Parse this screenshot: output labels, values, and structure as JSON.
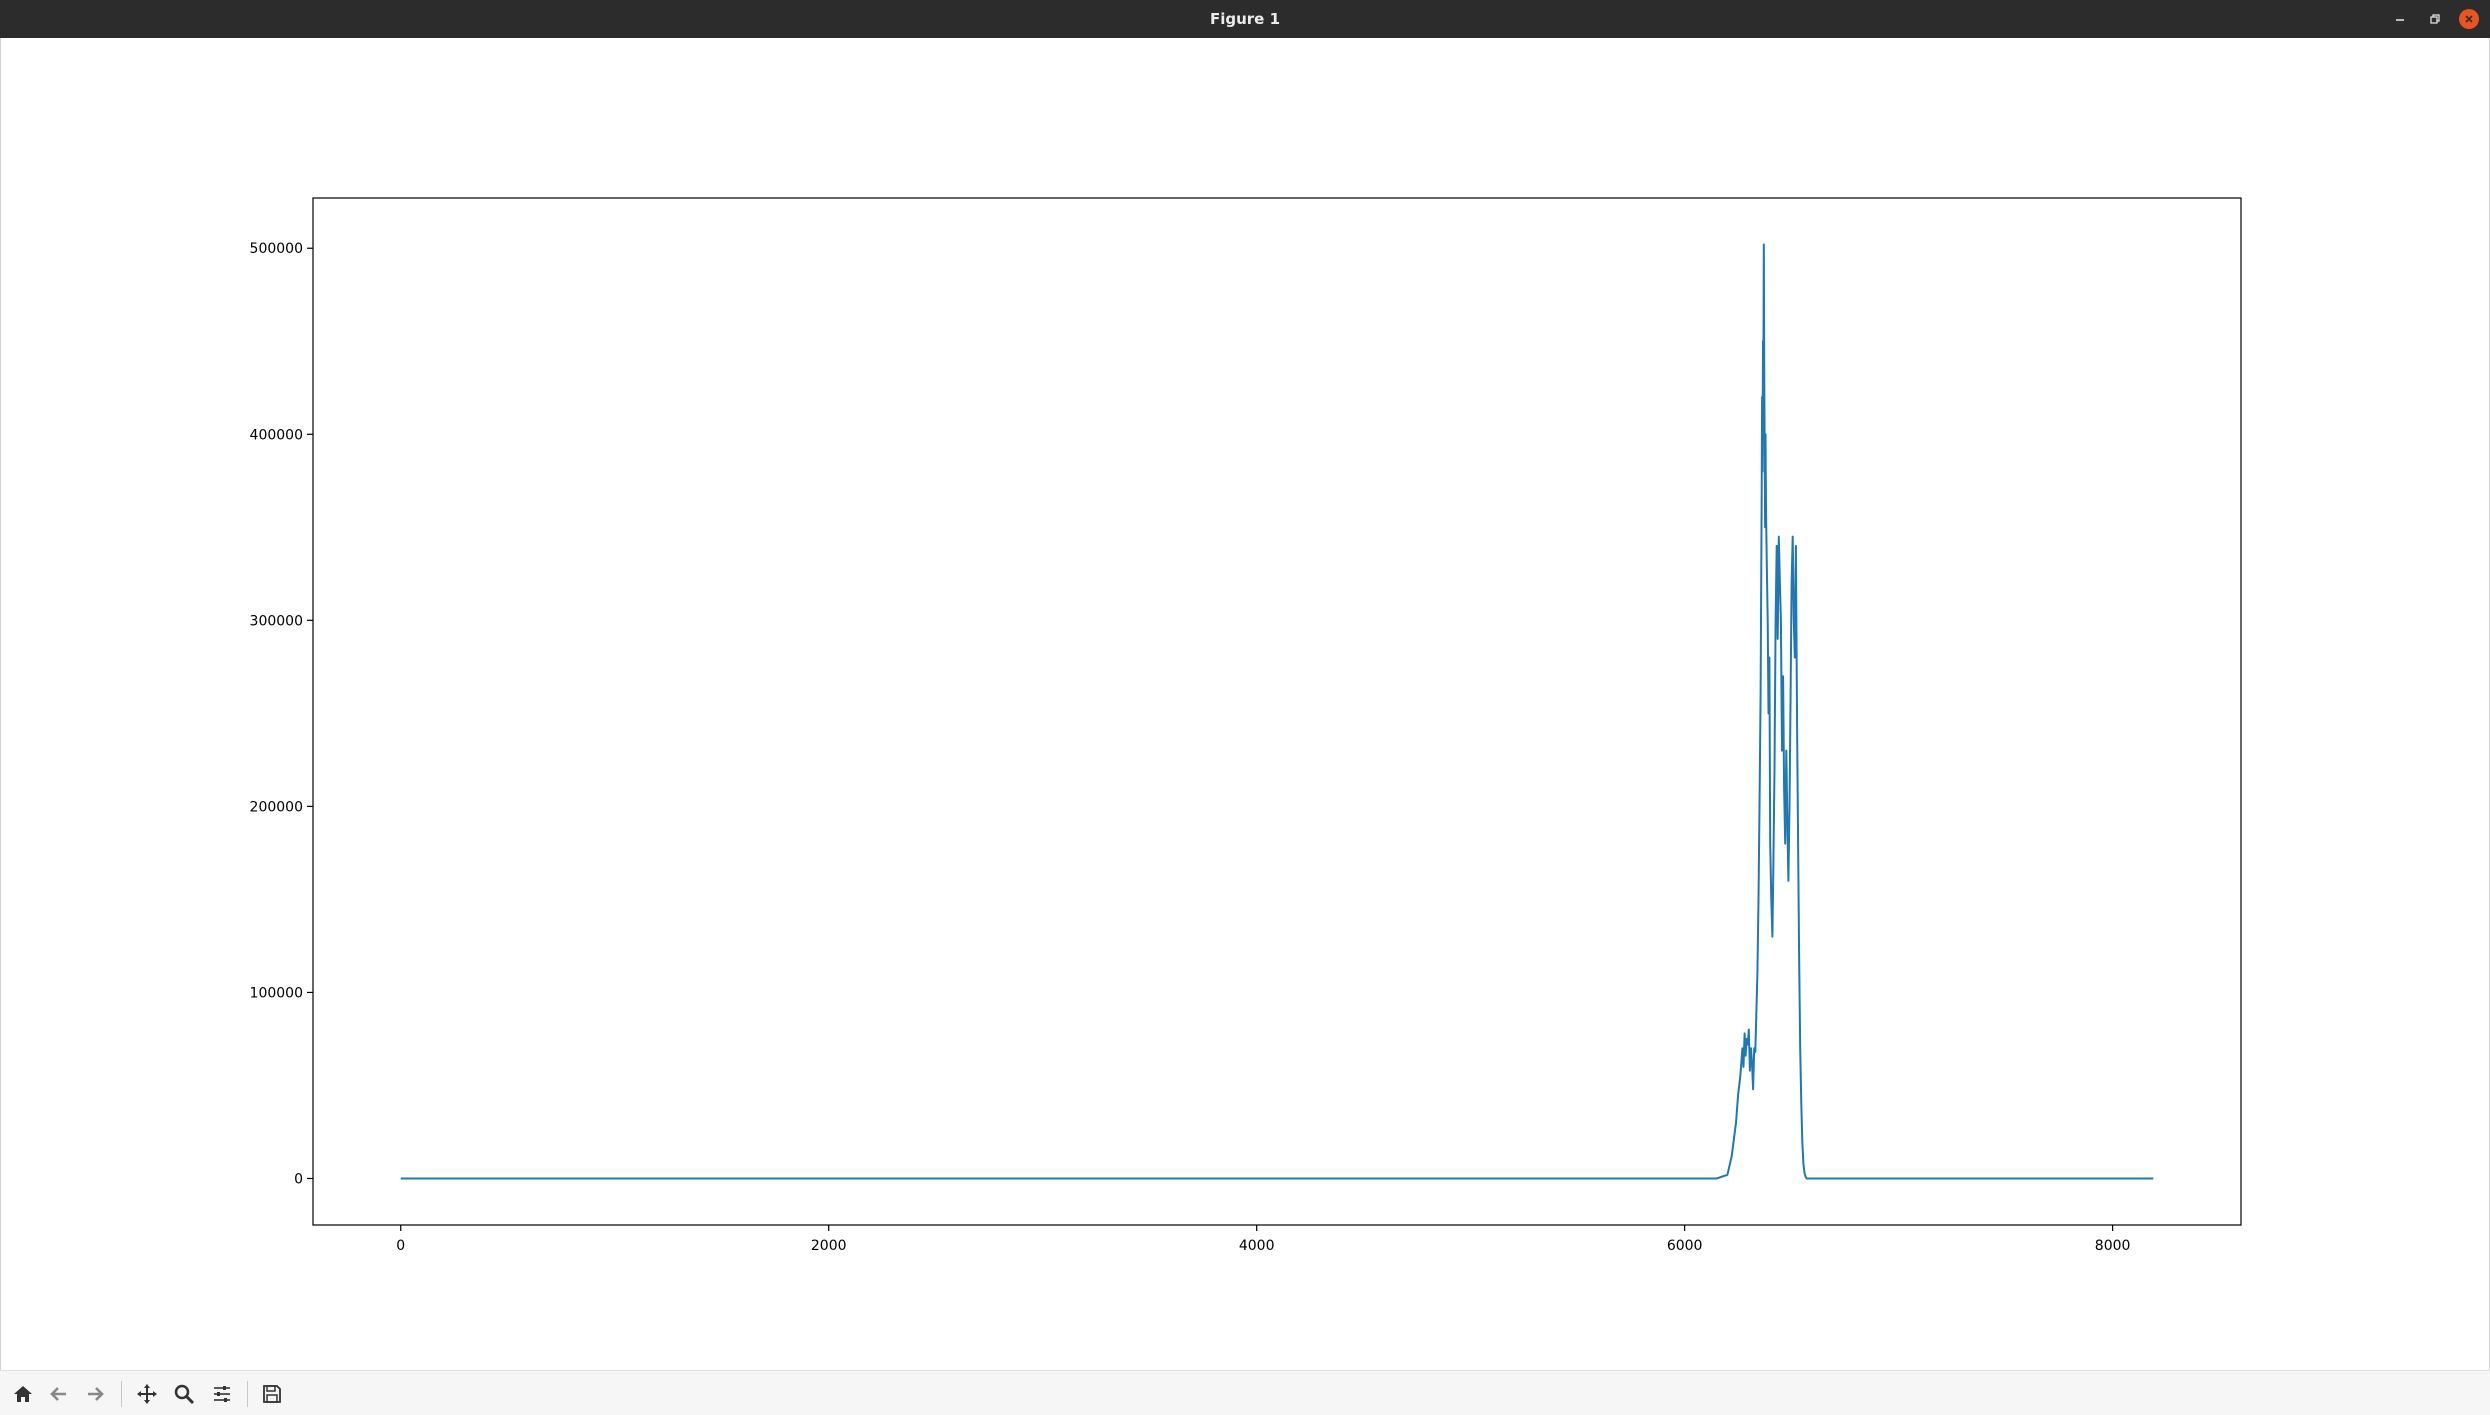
{
  "window": {
    "title": "Figure 1"
  },
  "toolbar": {
    "items": [
      "home-icon",
      "back-arrow-icon",
      "forward-arrow-icon",
      "pan-move-icon",
      "zoom-magnifier-icon",
      "configure-subplots-icon",
      "save-floppy-icon"
    ]
  },
  "colors": {
    "titlebar": "#2c2c2c",
    "close_button": "#e95420",
    "series": "#1f77b4",
    "toolbar_bg": "#f6f6f6"
  },
  "chart_data": {
    "type": "line",
    "title": "",
    "xlabel": "",
    "ylabel": "",
    "xlim": [
      -410,
      8600
    ],
    "ylim": [
      -25000,
      527000
    ],
    "xticks": [
      0,
      2000,
      4000,
      6000,
      8000
    ],
    "xtick_labels": [
      "0",
      "2000",
      "4000",
      "6000",
      "8000"
    ],
    "yticks": [
      0,
      100000,
      200000,
      300000,
      400000,
      500000
    ],
    "ytick_labels": [
      "0",
      "100000",
      "200000",
      "300000",
      "400000",
      "500000"
    ],
    "grid": false,
    "series": [
      {
        "color": "#1f77b4",
        "x": [
          0,
          6150,
          6200,
          6220,
          6240,
          6250,
          6260,
          6270,
          6275,
          6280,
          6285,
          6290,
          6295,
          6300,
          6305,
          6310,
          6315,
          6320,
          6325,
          6330,
          6340,
          6345,
          6350,
          6355,
          6358,
          6360,
          6362,
          6364,
          6366,
          6368,
          6370,
          6372,
          6374,
          6376,
          6378,
          6380,
          6384,
          6388,
          6392,
          6396,
          6400,
          6405,
          6410,
          6415,
          6420,
          6425,
          6430,
          6435,
          6440,
          6445,
          6450,
          6455,
          6460,
          6465,
          6470,
          6475,
          6480,
          6485,
          6490,
          6495,
          6500,
          6505,
          6510,
          6515,
          6520,
          6525,
          6530,
          6535,
          6540,
          6545,
          6550,
          6555,
          6560,
          6565,
          6570,
          6575,
          6580,
          6590,
          6600,
          6620,
          6650,
          8190
        ],
        "y": [
          0,
          0,
          2000,
          12000,
          30000,
          45000,
          55000,
          70000,
          60000,
          78000,
          66000,
          75000,
          72000,
          80000,
          58000,
          70000,
          62000,
          48000,
          70000,
          68000,
          110000,
          150000,
          200000,
          260000,
          320000,
          370000,
          420000,
          380000,
          450000,
          430000,
          502000,
          440000,
          390000,
          350000,
          400000,
          360000,
          330000,
          300000,
          250000,
          280000,
          180000,
          150000,
          130000,
          170000,
          220000,
          300000,
          340000,
          290000,
          345000,
          320000,
          300000,
          230000,
          270000,
          210000,
          180000,
          230000,
          190000,
          160000,
          200000,
          260000,
          320000,
          345000,
          300000,
          280000,
          340000,
          250000,
          180000,
          120000,
          70000,
          40000,
          20000,
          8000,
          3000,
          1000,
          0,
          0,
          0,
          0,
          0,
          0,
          0,
          0
        ]
      }
    ]
  }
}
